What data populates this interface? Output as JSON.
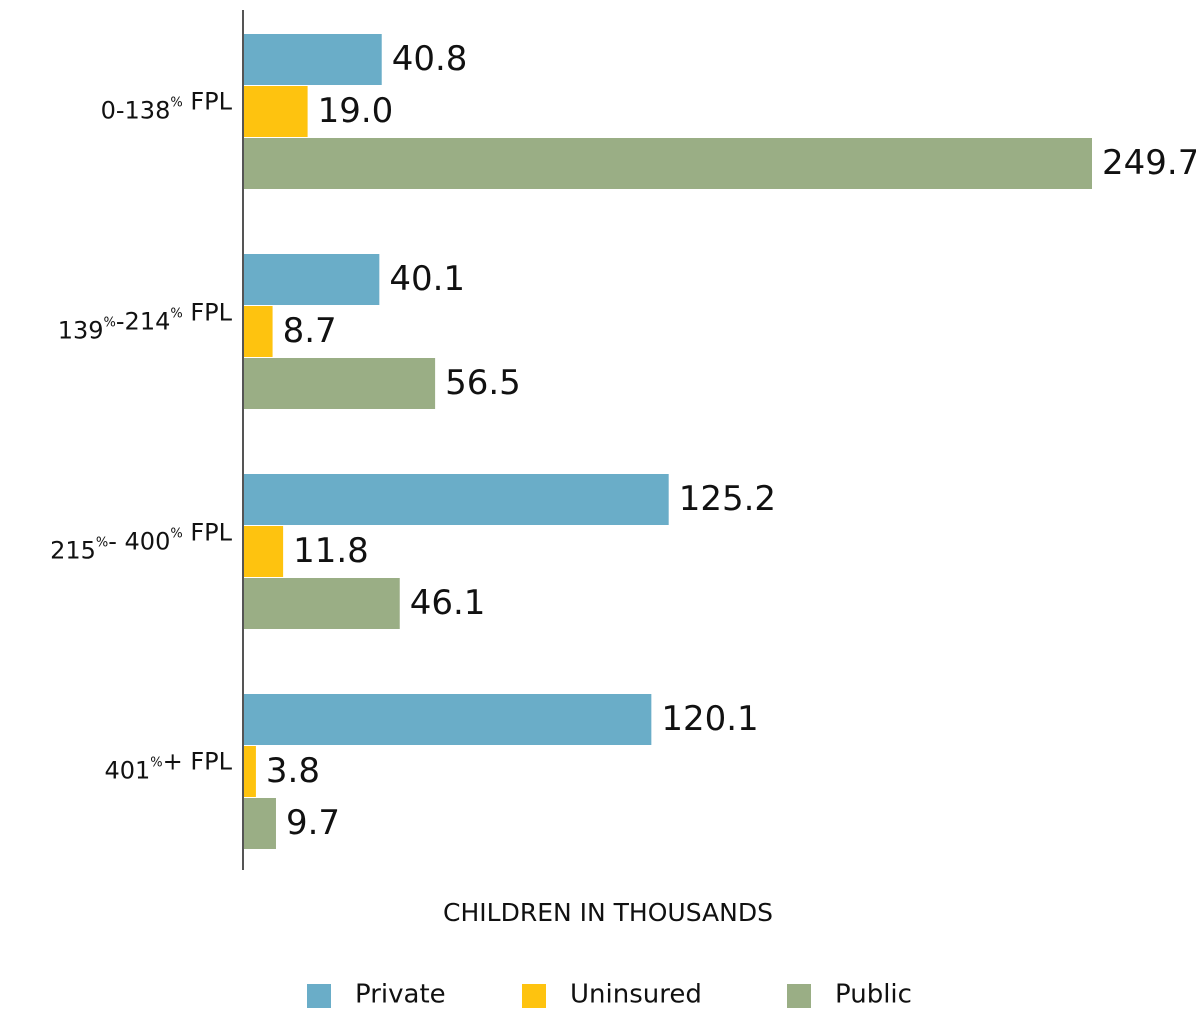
{
  "chart_data": {
    "type": "bar",
    "orientation": "horizontal",
    "categories": [
      "0-138% FPL",
      "139%-214% FPL",
      "215%- 400% FPL",
      "401%+ FPL"
    ],
    "series": [
      {
        "name": "Private",
        "color": "#6aadc8",
        "values": [
          40.8,
          40.1,
          125.2,
          120.1
        ],
        "value_labels": [
          "40.8",
          "40.1",
          "125.2",
          "120.1"
        ]
      },
      {
        "name": "Uninsured",
        "color": "#fec30f",
        "values": [
          19.0,
          8.7,
          11.8,
          3.8
        ],
        "value_labels": [
          "19.0",
          "8.7",
          "11.8",
          "3.8"
        ]
      },
      {
        "name": "Public",
        "color": "#9aae85",
        "values": [
          249.7,
          56.5,
          46.1,
          9.7
        ],
        "value_labels": [
          "249.7",
          "56.5",
          "46.1",
          "9.7"
        ]
      }
    ],
    "x_label": "CHILDREN IN THOUSANDS",
    "legend": "bottom"
  }
}
